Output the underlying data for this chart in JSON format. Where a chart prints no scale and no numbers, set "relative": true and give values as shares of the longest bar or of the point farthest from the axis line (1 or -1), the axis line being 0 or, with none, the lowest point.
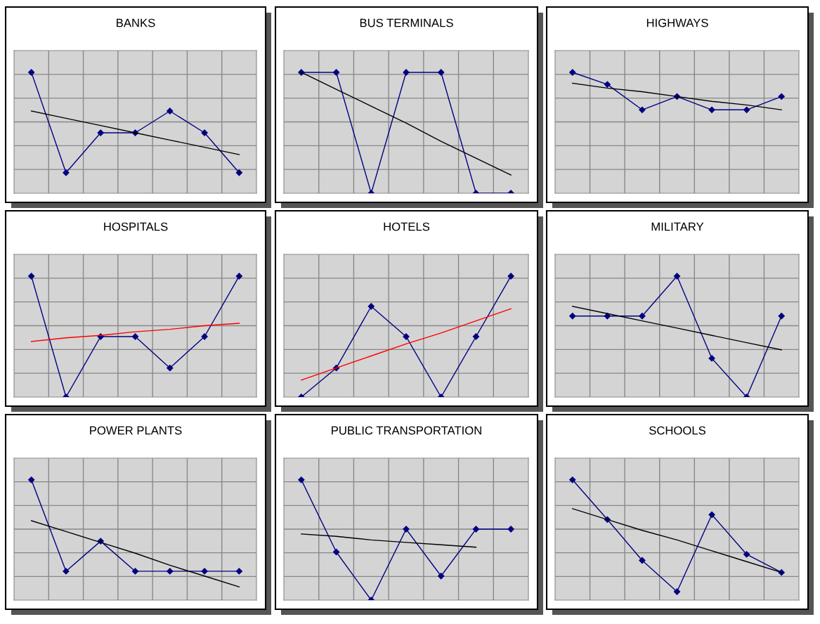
{
  "chart_data": [
    {
      "type": "line",
      "title": "BANKS",
      "relative": true,
      "grid": true,
      "legend": false,
      "categories": [
        null,
        null,
        null,
        null,
        null,
        null,
        null
      ],
      "series": [
        {
          "color": "#000080",
          "marker": "diamond",
          "values": [
            1,
            0.17,
            0.5,
            0.5,
            0.68,
            0.5,
            0.17
          ]
        },
        {
          "color": "#000000",
          "marker": "none",
          "values": [
            0.68,
            0.62,
            0.56,
            0.5,
            0.44,
            0.38,
            0.32
          ]
        }
      ]
    },
    {
      "type": "line",
      "title": "BUS TERMINALS",
      "relative": true,
      "grid": true,
      "legend": false,
      "categories": [
        null,
        null,
        null,
        null,
        null,
        null,
        null
      ],
      "series": [
        {
          "color": "#000080",
          "marker": "diamond",
          "values": [
            1,
            1,
            0,
            1,
            1,
            0,
            0
          ]
        },
        {
          "color": "#000000",
          "marker": "none",
          "values": [
            1,
            0.86,
            0.72,
            0.58,
            0.43,
            0.29,
            0.15
          ]
        }
      ]
    },
    {
      "type": "line",
      "title": "HIGHWAYS",
      "relative": true,
      "grid": true,
      "legend": false,
      "categories": [
        null,
        null,
        null,
        null,
        null,
        null,
        null
      ],
      "series": [
        {
          "color": "#000080",
          "marker": "diamond",
          "values": [
            1,
            0.9,
            0.69,
            0.8,
            0.69,
            0.69,
            0.8
          ]
        },
        {
          "color": "#000000",
          "marker": "none",
          "values": [
            0.91,
            0.87,
            0.84,
            0.8,
            0.76,
            0.73,
            0.69
          ]
        }
      ]
    },
    {
      "type": "line",
      "title": "HOSPITALS",
      "relative": true,
      "grid": true,
      "legend": false,
      "categories": [
        null,
        null,
        null,
        null,
        null,
        null,
        null
      ],
      "series": [
        {
          "color": "#000080",
          "marker": "diamond",
          "values": [
            1,
            0,
            0.5,
            0.5,
            0.24,
            0.5,
            1
          ]
        },
        {
          "color": "#ff0000",
          "marker": "none",
          "values": [
            0.46,
            0.49,
            0.51,
            0.54,
            0.56,
            0.59,
            0.61
          ]
        }
      ]
    },
    {
      "type": "line",
      "title": "HOTELS",
      "relative": true,
      "grid": true,
      "legend": false,
      "categories": [
        null,
        null,
        null,
        null,
        null,
        null,
        null
      ],
      "series": [
        {
          "color": "#000080",
          "marker": "diamond",
          "values": [
            0,
            0.24,
            0.75,
            0.5,
            0,
            0.5,
            1
          ]
        },
        {
          "color": "#ff0000",
          "marker": "none",
          "values": [
            0.14,
            0.24,
            0.34,
            0.44,
            0.53,
            0.63,
            0.73
          ]
        }
      ]
    },
    {
      "type": "line",
      "title": "MILITARY",
      "relative": true,
      "grid": true,
      "legend": false,
      "categories": [
        null,
        null,
        null,
        null,
        null,
        null,
        null
      ],
      "series": [
        {
          "color": "#000080",
          "marker": "diamond",
          "values": [
            0.67,
            0.67,
            0.67,
            1,
            0.32,
            0,
            0.67
          ]
        },
        {
          "color": "#000000",
          "marker": "none",
          "values": [
            0.75,
            0.69,
            0.63,
            0.57,
            0.51,
            0.45,
            0.39
          ]
        }
      ]
    },
    {
      "type": "line",
      "title": "POWER PLANTS",
      "relative": true,
      "grid": true,
      "legend": false,
      "categories": [
        null,
        null,
        null,
        null,
        null,
        null,
        null
      ],
      "series": [
        {
          "color": "#000080",
          "marker": "diamond",
          "values": [
            1,
            0.24,
            0.49,
            0.24,
            0.24,
            0.24,
            0.24
          ]
        },
        {
          "color": "#000000",
          "marker": "none",
          "values": [
            0.66,
            0.57,
            0.48,
            0.39,
            0.29,
            0.2,
            0.11
          ]
        }
      ]
    },
    {
      "type": "line",
      "title": "PUBLIC TRANSPORTATION",
      "relative": true,
      "grid": true,
      "legend": false,
      "categories": [
        null,
        null,
        null,
        null,
        null,
        null,
        null
      ],
      "series": [
        {
          "color": "#000080",
          "marker": "diamond",
          "values": [
            1,
            0.4,
            0,
            0.59,
            0.2,
            0.59,
            0.59
          ]
        },
        {
          "color": "#000000",
          "marker": "none",
          "values": [
            0.55,
            0.53,
            0.5,
            0.48,
            0.46,
            0.44,
            null
          ]
        }
      ]
    },
    {
      "type": "line",
      "title": "SCHOOLS",
      "relative": true,
      "grid": true,
      "legend": false,
      "categories": [
        null,
        null,
        null,
        null,
        null,
        null,
        null
      ],
      "series": [
        {
          "color": "#000080",
          "marker": "diamond",
          "values": [
            1,
            0.67,
            0.33,
            0.07,
            0.71,
            0.38,
            0.23
          ]
        },
        {
          "color": "#000000",
          "marker": "none",
          "values": [
            0.76,
            0.67,
            0.58,
            0.5,
            0.41,
            0.32,
            0.23
          ]
        }
      ]
    }
  ]
}
